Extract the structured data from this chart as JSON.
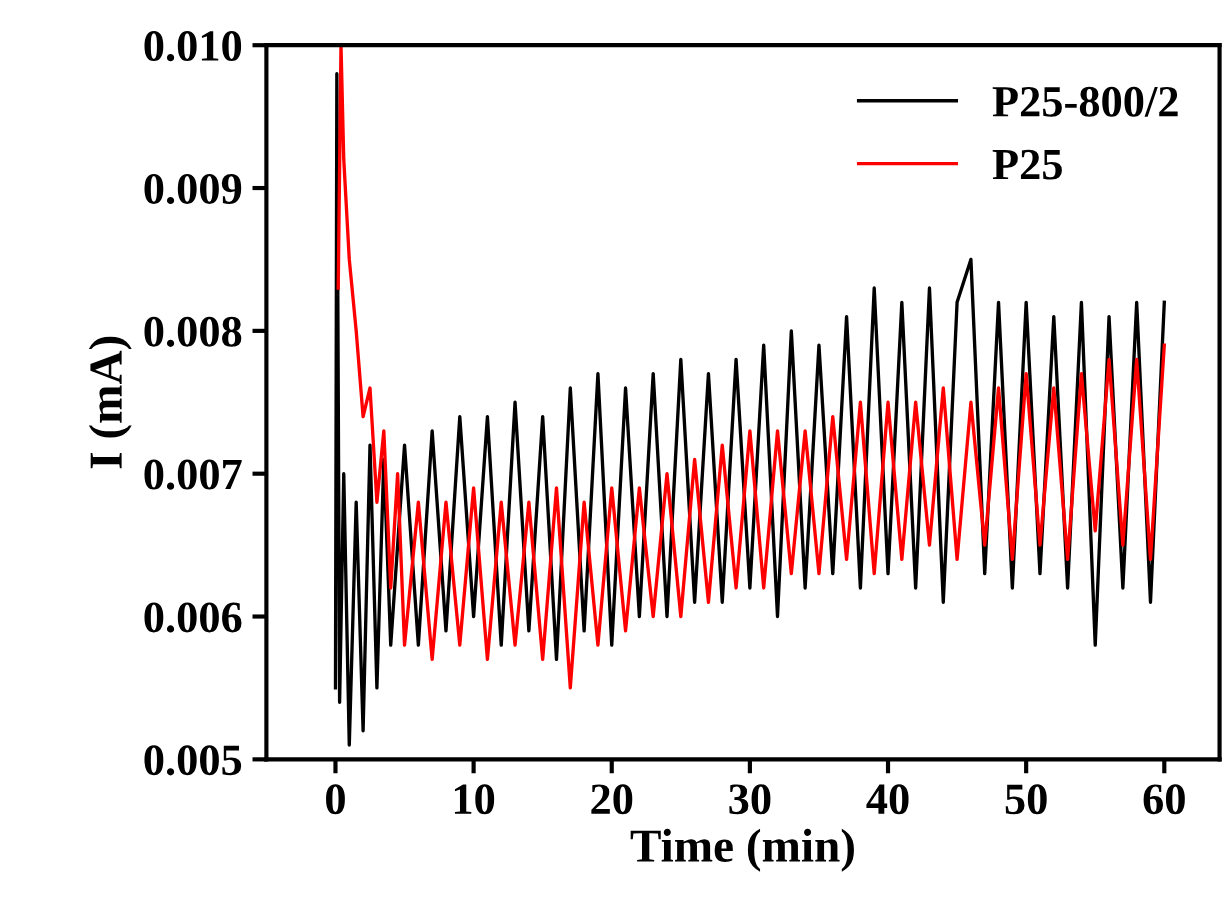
{
  "chart_data": {
    "type": "line",
    "xlabel": "Time (min)",
    "ylabel": "I (mA)",
    "xlim": [
      -5,
      64
    ],
    "ylim": [
      0.005,
      0.01
    ],
    "xticks": [
      0,
      10,
      20,
      30,
      40,
      50,
      60
    ],
    "yticks": [
      {
        "value": 0.005,
        "label": "0.005"
      },
      {
        "value": 0.006,
        "label": "0.006"
      },
      {
        "value": 0.007,
        "label": "0.007"
      },
      {
        "value": 0.008,
        "label": "0.008"
      },
      {
        "value": 0.009,
        "label": "0.009"
      },
      {
        "value": 0.01,
        "label": "0.010"
      }
    ],
    "grid": false,
    "legend": "top right",
    "marker": "none",
    "line_style": "solid",
    "series": [
      {
        "name": "P25-800/2",
        "color": "#000000",
        "x": [
          0,
          0.1,
          0.3,
          0.6,
          1,
          1.5,
          2,
          2.5,
          3,
          3.5,
          4,
          5,
          6,
          7,
          8,
          9,
          10,
          11,
          12,
          13,
          14,
          15,
          16,
          17,
          18,
          19,
          20,
          21,
          22,
          23,
          24,
          25,
          26,
          27,
          28,
          29,
          30,
          31,
          32,
          33,
          34,
          35,
          36,
          37,
          38,
          39,
          40,
          41,
          42,
          43,
          44,
          45,
          46,
          47,
          48,
          49,
          50,
          51,
          52,
          53,
          54,
          55,
          56,
          57,
          58,
          59,
          60
        ],
        "values": [
          0.0055,
          0.0098,
          0.0054,
          0.007,
          0.0051,
          0.0068,
          0.0052,
          0.0072,
          0.0055,
          0.0071,
          0.0058,
          0.0072,
          0.0058,
          0.0073,
          0.0059,
          0.0074,
          0.006,
          0.0074,
          0.0058,
          0.0075,
          0.0059,
          0.0074,
          0.0057,
          0.0076,
          0.0059,
          0.0077,
          0.0058,
          0.0076,
          0.006,
          0.0077,
          0.006,
          0.0078,
          0.0061,
          0.0077,
          0.0061,
          0.0078,
          0.0062,
          0.0079,
          0.006,
          0.008,
          0.0062,
          0.0079,
          0.0063,
          0.0081,
          0.0062,
          0.0083,
          0.0063,
          0.0082,
          0.0062,
          0.0083,
          0.0061,
          0.0082,
          0.0085,
          0.0063,
          0.0082,
          0.0062,
          0.0082,
          0.0063,
          0.0081,
          0.0062,
          0.0082,
          0.0058,
          0.0081,
          0.0062,
          0.0082,
          0.0061,
          0.0082
        ]
      },
      {
        "name": "P25",
        "color": "#ff0000",
        "x": [
          0.2,
          0.4,
          0.6,
          1,
          1.5,
          2,
          2.5,
          3,
          3.5,
          4,
          4.5,
          5,
          6,
          7,
          8,
          9,
          10,
          11,
          12,
          13,
          14,
          15,
          16,
          17,
          18,
          19,
          20,
          21,
          22,
          23,
          24,
          25,
          26,
          27,
          28,
          29,
          30,
          31,
          32,
          33,
          34,
          35,
          36,
          37,
          38,
          39,
          40,
          41,
          42,
          43,
          44,
          45,
          46,
          47,
          48,
          49,
          50,
          51,
          52,
          53,
          54,
          55,
          56,
          57,
          58,
          59,
          60
        ],
        "values": [
          0.0083,
          0.01,
          0.0092,
          0.0085,
          0.008,
          0.0074,
          0.0076,
          0.0068,
          0.0073,
          0.0062,
          0.007,
          0.0058,
          0.0068,
          0.0057,
          0.0068,
          0.0058,
          0.0069,
          0.0057,
          0.0068,
          0.0058,
          0.0068,
          0.0057,
          0.0069,
          0.0055,
          0.0068,
          0.0058,
          0.0069,
          0.0059,
          0.0069,
          0.006,
          0.007,
          0.006,
          0.0071,
          0.0061,
          0.0072,
          0.0062,
          0.0073,
          0.0062,
          0.0073,
          0.0063,
          0.0073,
          0.0063,
          0.0074,
          0.0064,
          0.0075,
          0.0063,
          0.0075,
          0.0064,
          0.0075,
          0.0065,
          0.0076,
          0.0064,
          0.0075,
          0.0065,
          0.0076,
          0.0064,
          0.0077,
          0.0065,
          0.0076,
          0.0064,
          0.0077,
          0.0066,
          0.0078,
          0.0065,
          0.0078,
          0.0064,
          0.0079
        ]
      }
    ]
  }
}
